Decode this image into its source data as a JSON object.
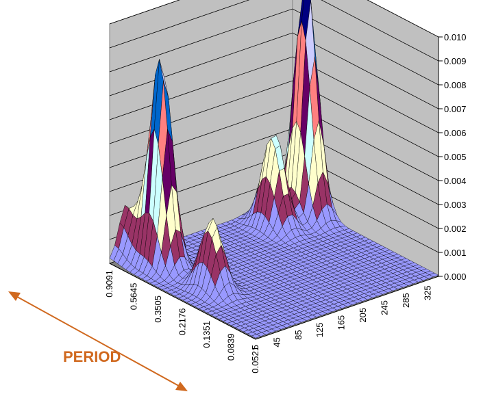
{
  "chart_data": {
    "type": "surface",
    "title": "",
    "annotation": "PERIOD",
    "z_ticks": [
      "0.000",
      "0.001",
      "0.002",
      "0.003",
      "0.004",
      "0.005",
      "0.006",
      "0.007",
      "0.008",
      "0.009",
      "0.010"
    ],
    "z_range": [
      0,
      0.01
    ],
    "period_ticks": [
      "0.9091",
      "0.5645",
      "0.3505",
      "0.2176",
      "0.1351",
      "0.0839",
      "0.0521"
    ],
    "x_ticks": [
      "5",
      "45",
      "85",
      "125",
      "165",
      "205",
      "245",
      "285",
      "325"
    ],
    "x_range": [
      5,
      345
    ],
    "grid": true,
    "band_colors": [
      "#9999ff",
      "#993366",
      "#ffffcc",
      "#ccffff",
      "#660066",
      "#ff8080",
      "#0066cc",
      "#ccccff",
      "#000080",
      "#ff00ff"
    ],
    "peaks": [
      {
        "x": 55,
        "period": 0.5645,
        "z": 0.0088
      },
      {
        "x": 60,
        "period": 0.2176,
        "z": 0.003
      },
      {
        "x": 35,
        "period": 0.9091,
        "z": 0.0021
      },
      {
        "x": 325,
        "period": 0.5645,
        "z": 0.01
      },
      {
        "x": 265,
        "period": 0.5645,
        "z": 0.004
      }
    ]
  }
}
